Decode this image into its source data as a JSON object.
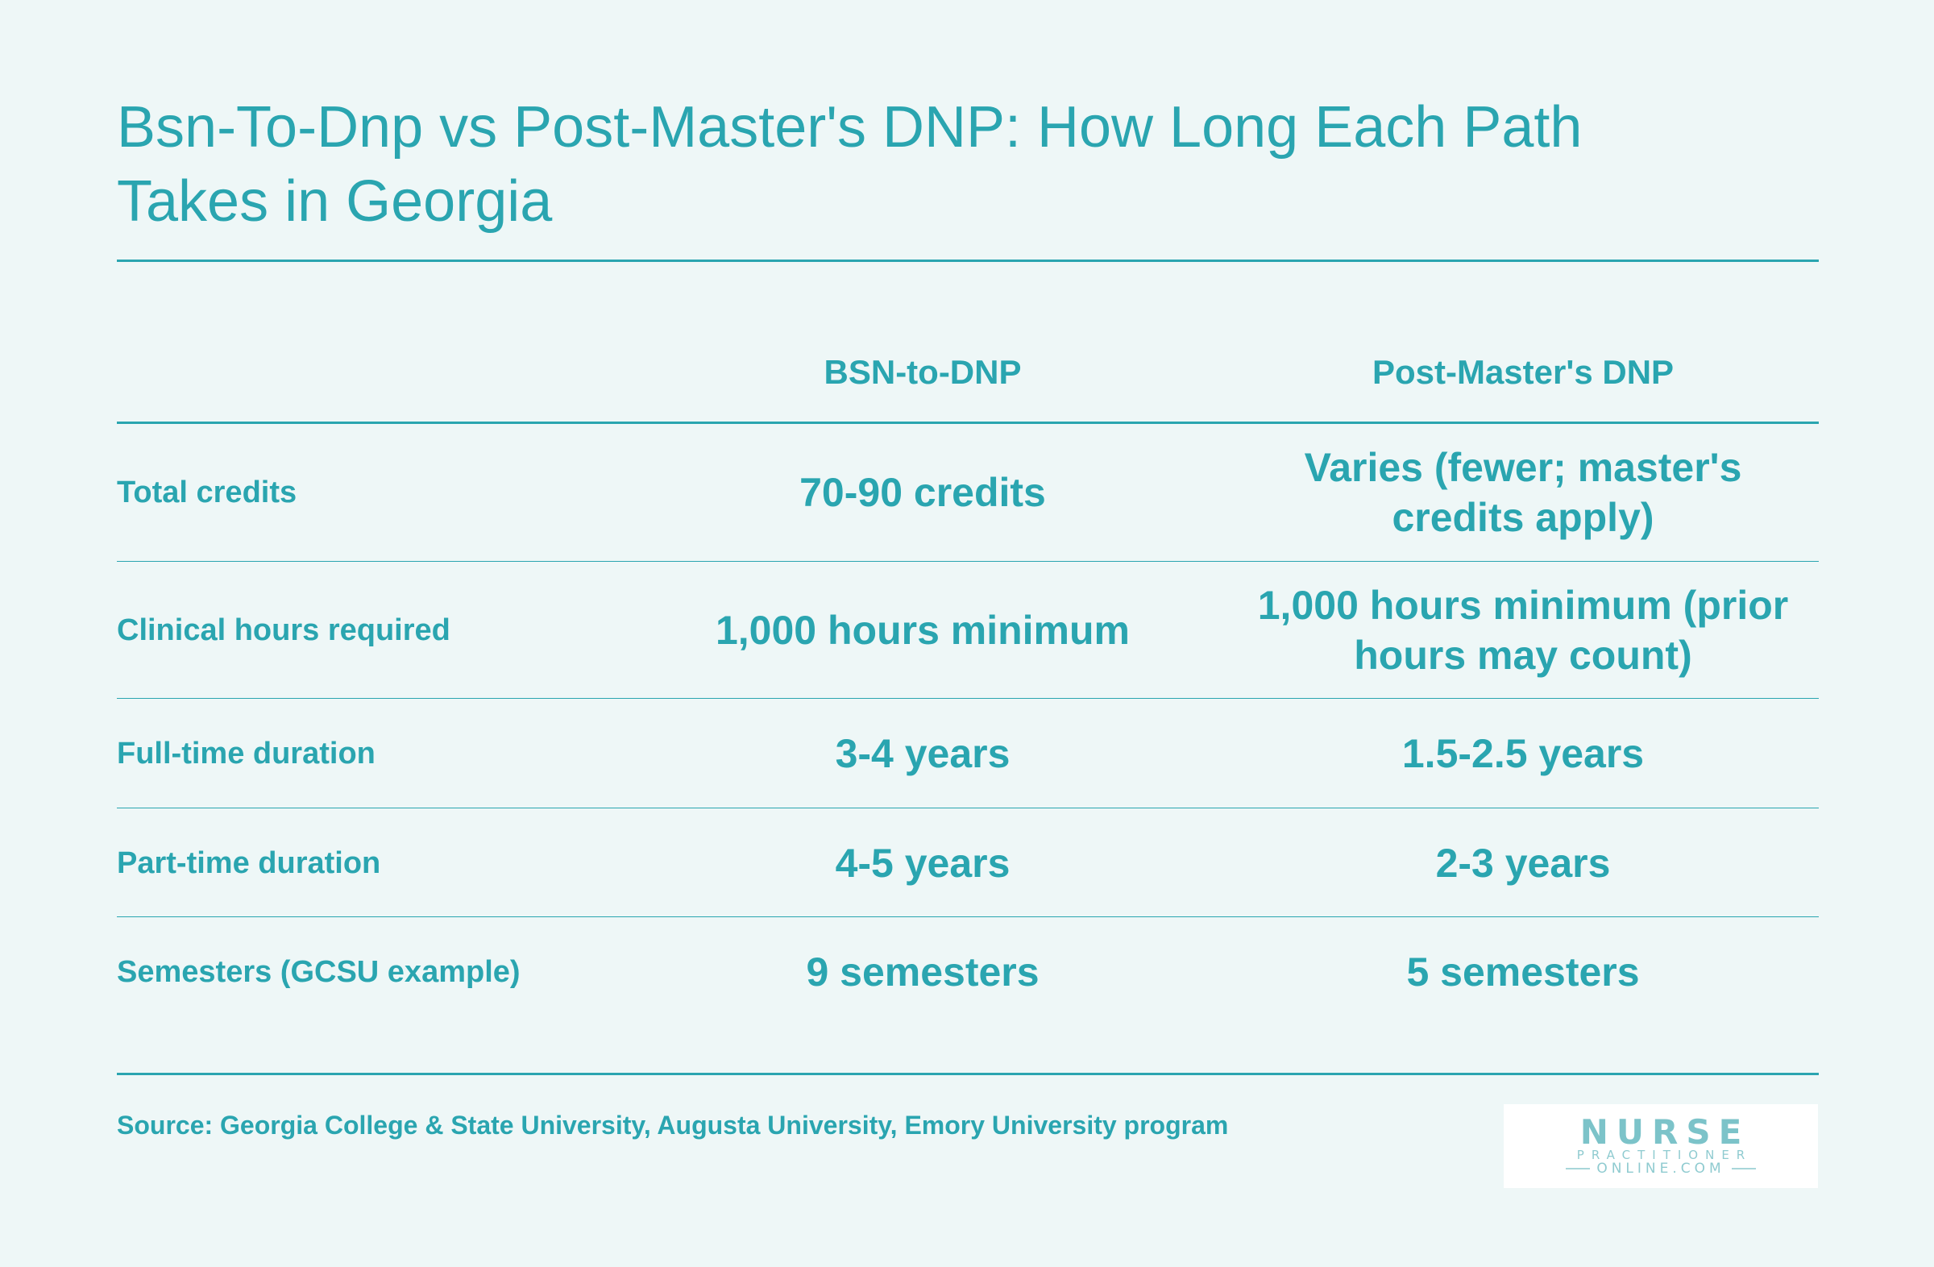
{
  "title": "Bsn-To-Dnp vs Post-Master's DNP: How Long Each Path Takes in Georgia",
  "table": {
    "headers": [
      "",
      "BSN-to-DNP",
      "Post-Master's DNP"
    ],
    "rows": [
      {
        "label": "Total credits",
        "bsn": "70-90 credits",
        "post": "Varies (fewer; master's credits apply)"
      },
      {
        "label": "Clinical hours required",
        "bsn": "1,000 hours minimum",
        "post": "1,000 hours minimum (prior hours may count)"
      },
      {
        "label": "Full-time duration",
        "bsn": "3-4 years",
        "post": "1.5-2.5 years"
      },
      {
        "label": "Part-time duration",
        "bsn": "4-5 years",
        "post": "2-3 years"
      },
      {
        "label": "Semesters (GCSU example)",
        "bsn": "9 semesters",
        "post": "5 semesters"
      }
    ]
  },
  "source": "Source: Georgia College & State University, Augusta University, Emory University program",
  "logo": {
    "line1": "NURSE",
    "line2": "PRACTITIONER",
    "line3": "ONLINE.COM"
  },
  "colors": {
    "accent": "#2aa5b0",
    "background": "#eef7f7"
  }
}
